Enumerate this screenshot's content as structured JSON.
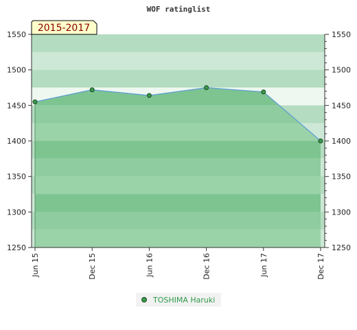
{
  "chart_data": {
    "type": "area",
    "title": "WOF ratinglist",
    "badge": "2015-2017",
    "categories": [
      "Jun 15",
      "Dec 15",
      "Jun 16",
      "Dec 16",
      "Jun 17",
      "Dec 17"
    ],
    "series": [
      {
        "name": "TOSHIMA Haruki",
        "values": [
          1455,
          1472,
          1464,
          1475,
          1469,
          1400
        ]
      }
    ],
    "ylim": [
      1250,
      1550
    ],
    "yticks": [
      1250,
      1300,
      1350,
      1400,
      1450,
      1500,
      1550
    ],
    "legend_position": "bottom-center",
    "colors": {
      "line": "#5b9bd5",
      "area": "#8fcc9f",
      "marker": "#3a9a4a",
      "badge_bg": "#ffffcc",
      "legend_text": "#2e9a4a"
    }
  }
}
